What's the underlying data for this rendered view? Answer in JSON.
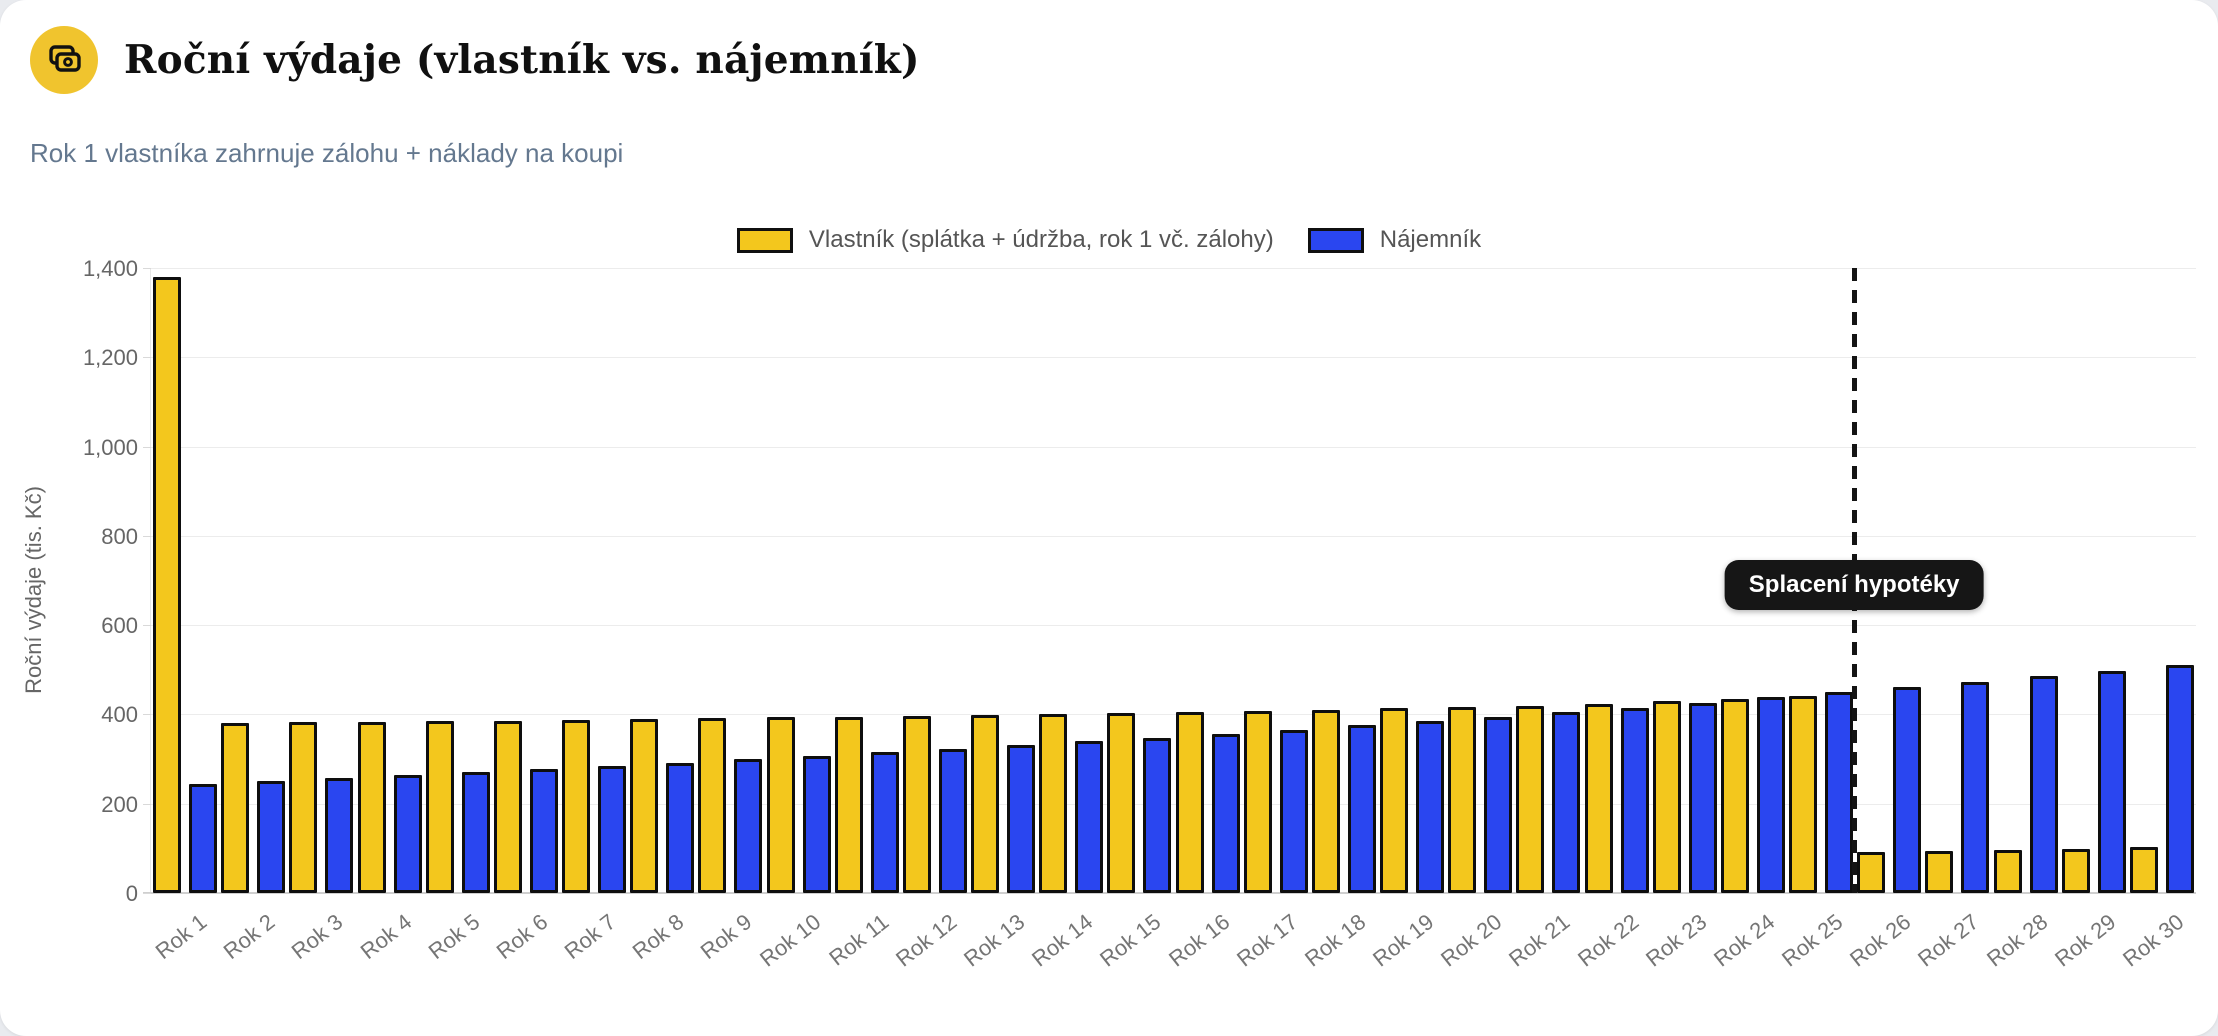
{
  "header": {
    "title": "Roční výdaje (vlastník vs. nájemník)",
    "subtitle": "Rok 1 vlastníka zahrnuje zálohu + náklady na koupi",
    "icon": "banknotes-icon",
    "icon_bg": "#f0c42e"
  },
  "chart_data": {
    "type": "bar",
    "title": "Roční výdaje (vlastník vs. nájemník)",
    "ylabel": "Roční výdaje (tis. Kč)",
    "ylim": [
      0,
      1400
    ],
    "ytick_step": 200,
    "ytick_labels": [
      "0",
      "200",
      "400",
      "600",
      "800",
      "1,000",
      "1,200",
      "1,400"
    ],
    "grid": true,
    "legend_position": "top",
    "categories": [
      "Rok 1",
      "Rok 2",
      "Rok 3",
      "Rok 4",
      "Rok 5",
      "Rok 6",
      "Rok 7",
      "Rok 8",
      "Rok 9",
      "Rok 10",
      "Rok 11",
      "Rok 12",
      "Rok 13",
      "Rok 14",
      "Rok 15",
      "Rok 16",
      "Rok 17",
      "Rok 18",
      "Rok 19",
      "Rok 20",
      "Rok 21",
      "Rok 22",
      "Rok 23",
      "Rok 24",
      "Rok 25",
      "Rok 26",
      "Rok 27",
      "Rok 28",
      "Rok 29",
      "Rok 30"
    ],
    "series": [
      {
        "name": "Vlastník (splátka + údržba, rok 1 vč. zálohy)",
        "color": "#f3c71d",
        "values": [
          1380,
          380,
          382,
          383,
          385,
          386,
          388,
          390,
          392,
          394,
          395,
          396,
          398,
          400,
          403,
          405,
          408,
          411,
          414,
          417,
          420,
          424,
          429,
          435,
          441,
          91,
          94,
          97,
          99,
          102
        ]
      },
      {
        "name": "Nájemník",
        "color": "#2a46f0",
        "values": [
          245,
          252,
          258,
          265,
          271,
          278,
          285,
          292,
          300,
          308,
          315,
          323,
          331,
          340,
          348,
          357,
          366,
          376,
          385,
          395,
          405,
          415,
          426,
          438,
          450,
          461,
          473,
          485,
          497,
          510
        ]
      }
    ],
    "annotation": {
      "label": "Splacení hypotéky",
      "line_after_category": "Rok 25",
      "line_style": "dashed",
      "line_color": "#141414"
    }
  }
}
